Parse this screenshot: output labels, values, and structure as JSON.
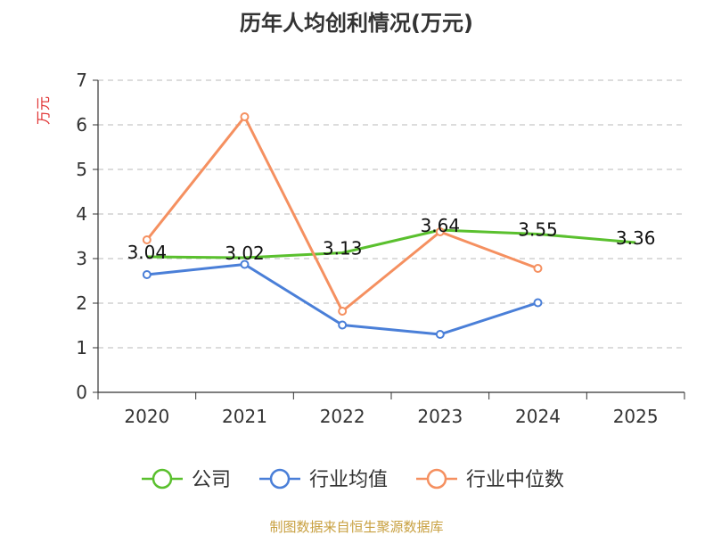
{
  "chart_data": {
    "type": "line",
    "title": "历年人均创利情况(万元)",
    "ylabel": "万元",
    "xlabel": "",
    "categories": [
      "2020",
      "2021",
      "2022",
      "2023",
      "2024",
      "2025"
    ],
    "ylim": [
      0,
      7
    ],
    "yticks": [
      "0",
      "1",
      "2",
      "3",
      "4",
      "5",
      "6",
      "7"
    ],
    "grid": true,
    "legend_position": "bottom",
    "series": [
      {
        "name": "公司",
        "color": "#5ac02e",
        "values": [
          3.04,
          3.02,
          3.13,
          3.64,
          3.55,
          3.36
        ],
        "labels": [
          "3.04",
          "3.02",
          "3.13",
          "3.64",
          "3.55",
          "3.36"
        ],
        "markers": false
      },
      {
        "name": "行业均值",
        "color": "#4a7fd8",
        "values": [
          2.64,
          2.87,
          1.51,
          1.3,
          2.01,
          null
        ],
        "markers": true
      },
      {
        "name": "行业中位数",
        "color": "#f59060",
        "values": [
          3.42,
          6.18,
          1.82,
          3.6,
          2.78,
          null
        ],
        "markers": true
      }
    ]
  },
  "source": "制图数据来自恒生聚源数据库"
}
